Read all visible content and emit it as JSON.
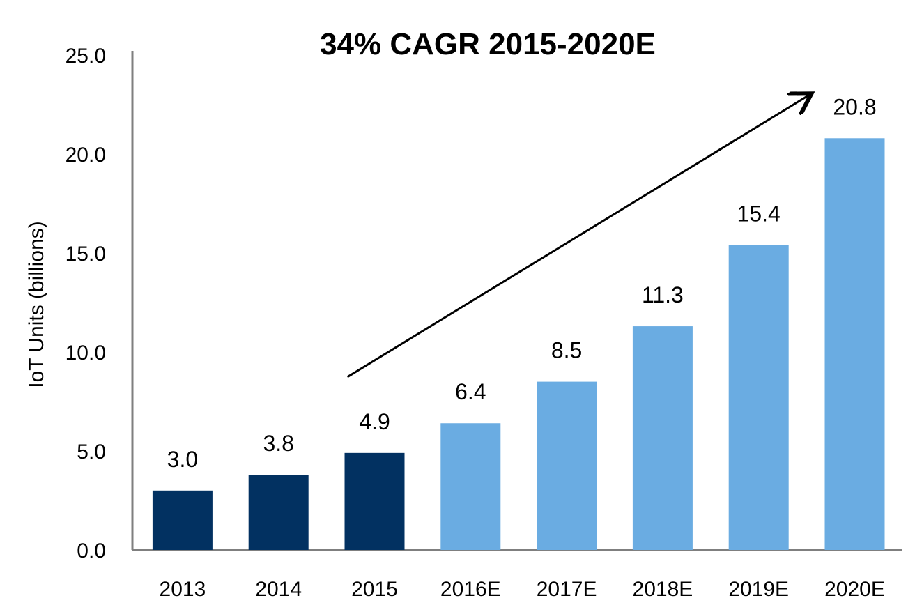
{
  "chart_data": {
    "type": "bar",
    "title": "34% CAGR 2015-2020E",
    "xlabel": "",
    "ylabel": "IoT Units (billions)",
    "categories": [
      "2013",
      "2014",
      "2015",
      "2016E",
      "2017E",
      "2018E",
      "2019E",
      "2020E"
    ],
    "values": [
      3.0,
      3.8,
      4.9,
      6.4,
      8.5,
      11.3,
      15.4,
      20.8
    ],
    "value_labels": [
      "3.0",
      "3.8",
      "4.9",
      "6.4",
      "8.5",
      "11.3",
      "15.4",
      "20.8"
    ],
    "ylim": [
      0,
      25
    ],
    "yticks": [
      0,
      5,
      10,
      15,
      20,
      25
    ],
    "ytick_labels": [
      "0.0",
      "5.0",
      "10.0",
      "15.0",
      "20.0",
      "25.0"
    ],
    "grid": false,
    "legend": "none",
    "colors": {
      "actual": "#023161",
      "estimate": "#6aace2",
      "axis": "#7f7f7f",
      "arrow": "#000000"
    },
    "bar_groups": [
      "actual",
      "actual",
      "actual",
      "estimate",
      "estimate",
      "estimate",
      "estimate",
      "estimate"
    ],
    "annotations": [
      {
        "type": "trend-arrow",
        "from_category": "2015",
        "to_category": "2020E"
      }
    ]
  }
}
